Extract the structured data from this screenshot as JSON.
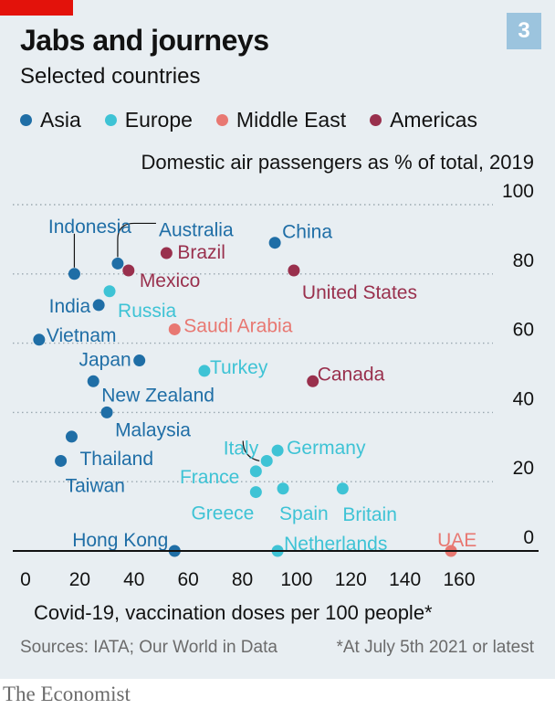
{
  "header": {
    "title": "Jabs and journeys",
    "subtitle": "Selected countries",
    "badge": "3"
  },
  "legend": [
    {
      "label": "Asia",
      "color": "#1f6ea6"
    },
    {
      "label": "Europe",
      "color": "#3ec3d5"
    },
    {
      "label": "Middle East",
      "color": "#e87872"
    },
    {
      "label": "Americas",
      "color": "#99304d"
    }
  ],
  "colors": {
    "accent": "#e3120b",
    "badge": "#9cc4de",
    "panel": "#e8eef2",
    "grid": "#9aa8b0"
  },
  "chart_data": {
    "type": "scatter",
    "ylabel": "Domestic air passengers as % of total, 2019",
    "xlabel": "Covid-19, vaccination doses per 100 people*",
    "xlim": [
      0,
      180
    ],
    "ylim": [
      0,
      100
    ],
    "xticks": [
      "0",
      "20",
      "40",
      "60",
      "80",
      "100",
      "120",
      "140",
      "160"
    ],
    "yticks": [
      "0",
      "20",
      "40",
      "60",
      "80",
      "100"
    ],
    "grid": "vertical",
    "legend_placement": "top-left",
    "points": [
      {
        "label": "Indonesia",
        "region": "Asia",
        "x": 18,
        "y": 80
      },
      {
        "label": "Australia",
        "region": "Asia",
        "x": 34,
        "y": 83
      },
      {
        "label": "Brazil",
        "region": "Americas",
        "x": 52,
        "y": 86
      },
      {
        "label": "Mexico",
        "region": "Americas",
        "x": 38,
        "y": 81
      },
      {
        "label": "China",
        "region": "Asia",
        "x": 92,
        "y": 89
      },
      {
        "label": "United States",
        "region": "Americas",
        "x": 99,
        "y": 81
      },
      {
        "label": "India",
        "region": "Asia",
        "x": 27,
        "y": 71
      },
      {
        "label": "Russia",
        "region": "Europe",
        "x": 31,
        "y": 75
      },
      {
        "label": "Saudi Arabia",
        "region": "Middle East",
        "x": 55,
        "y": 64
      },
      {
        "label": "Vietnam",
        "region": "Asia",
        "x": 5,
        "y": 61
      },
      {
        "label": "Japan",
        "region": "Asia",
        "x": 42,
        "y": 55
      },
      {
        "label": "Turkey",
        "region": "Europe",
        "x": 66,
        "y": 52
      },
      {
        "label": "Canada",
        "region": "Americas",
        "x": 106,
        "y": 49
      },
      {
        "label": "New Zealand",
        "region": "Asia",
        "x": 25,
        "y": 49
      },
      {
        "label": "Malaysia",
        "region": "Asia",
        "x": 30,
        "y": 40
      },
      {
        "label": "Thailand",
        "region": "Asia",
        "x": 17,
        "y": 33
      },
      {
        "label": "Taiwan",
        "region": "Asia",
        "x": 13,
        "y": 26
      },
      {
        "label": "Germany",
        "region": "Europe",
        "x": 93,
        "y": 29
      },
      {
        "label": "Italy",
        "region": "Europe",
        "x": 89,
        "y": 26
      },
      {
        "label": "France",
        "region": "Europe",
        "x": 85,
        "y": 23
      },
      {
        "label": "Greece",
        "region": "Europe",
        "x": 85,
        "y": 17
      },
      {
        "label": "Spain",
        "region": "Europe",
        "x": 95,
        "y": 18
      },
      {
        "label": "Britain",
        "region": "Europe",
        "x": 117,
        "y": 18
      },
      {
        "label": "Hong Kong",
        "region": "Asia",
        "x": 55,
        "y": 0
      },
      {
        "label": "Netherlands",
        "region": "Europe",
        "x": 93,
        "y": 0
      },
      {
        "label": "UAE",
        "region": "Middle East",
        "x": 157,
        "y": 0
      }
    ]
  },
  "footer": {
    "source": "Sources: IATA; Our World in Data",
    "footnote": "*At July 5th 2021 or latest",
    "brand": "The Economist"
  }
}
